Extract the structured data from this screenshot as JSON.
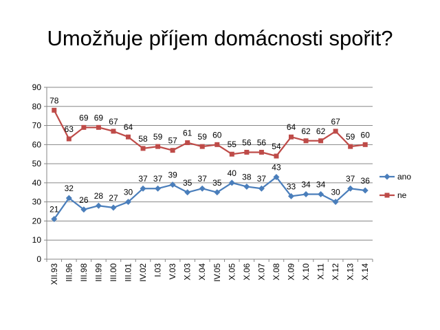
{
  "slide": {
    "title": "Umožňuje příjem domácnosti spořit?"
  },
  "chart_data": {
    "type": "line",
    "title": "",
    "xlabel": "",
    "ylabel": "",
    "ylim": [
      0,
      90
    ],
    "y_ticks": [
      "0",
      "10",
      "20",
      "30",
      "40",
      "50",
      "60",
      "70",
      "80",
      "90"
    ],
    "grid": "horizontal",
    "legend_position": "right",
    "categories": [
      "XII.93",
      "III.96",
      "III.98",
      "III.99",
      "III.00",
      "III.01",
      "IV.02",
      "I.03",
      "V.03",
      "X.03",
      "X.04",
      "IV.05",
      "X.05",
      "X.06",
      "X.07",
      "X.08",
      "X.09",
      "X.10",
      "X.11",
      "X.12",
      "X.13",
      "X.14"
    ],
    "series": [
      {
        "name": "ano",
        "color": "#4a7ebb",
        "marker": "diamond",
        "values": [
          21,
          32,
          26,
          28,
          27,
          30,
          37,
          37,
          39,
          35,
          37,
          35,
          40,
          38,
          37,
          43,
          33,
          34,
          34,
          30,
          37,
          36
        ]
      },
      {
        "name": "ne",
        "color": "#be4b48",
        "marker": "square",
        "values": [
          78,
          63,
          69,
          69,
          67,
          64,
          58,
          59,
          57,
          61,
          59,
          60,
          55,
          56,
          56,
          54,
          64,
          62,
          62,
          67,
          59,
          60
        ]
      }
    ]
  }
}
